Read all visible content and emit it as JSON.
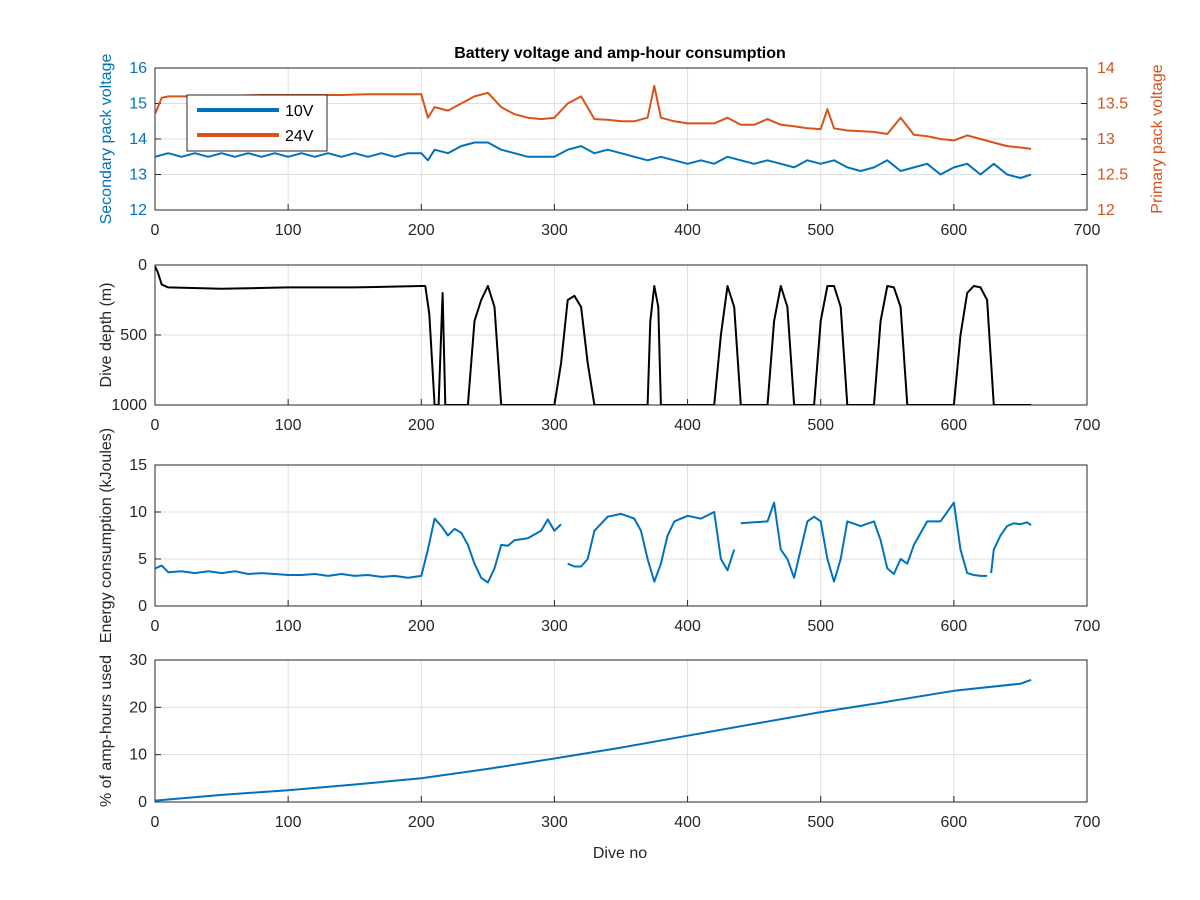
{
  "chart_data": [
    {
      "type": "line",
      "title": "Battery voltage and amp-hour consumption",
      "xlabel": "",
      "ylabel_left": "Secondary pack voltage",
      "ylabel_right": "Primary pack voltage",
      "xlim": [
        0,
        700
      ],
      "ylim_left": [
        12,
        16
      ],
      "ylim_right": [
        12,
        14
      ],
      "xticks": [
        "0",
        "100",
        "200",
        "300",
        "400",
        "500",
        "600",
        "700"
      ],
      "yticks_left": [
        "12",
        "13",
        "14",
        "15",
        "16"
      ],
      "yticks_right": [
        "12",
        "12.5",
        "13",
        "13.5",
        "14"
      ],
      "legend": {
        "position": "top-left",
        "entries": [
          "10V",
          "24V"
        ]
      },
      "grid": true,
      "series": [
        {
          "name": "10V",
          "axis": "left",
          "color": "#0072BD",
          "x": [
            0,
            10,
            20,
            30,
            40,
            50,
            60,
            70,
            80,
            90,
            100,
            110,
            120,
            130,
            140,
            150,
            160,
            170,
            180,
            190,
            200,
            205,
            210,
            220,
            230,
            240,
            250,
            260,
            270,
            280,
            290,
            300,
            310,
            320,
            330,
            340,
            350,
            360,
            370,
            380,
            390,
            400,
            410,
            420,
            430,
            440,
            450,
            460,
            470,
            480,
            490,
            500,
            510,
            520,
            530,
            540,
            550,
            560,
            570,
            580,
            590,
            600,
            610,
            620,
            630,
            640,
            650,
            658
          ],
          "y": [
            13.5,
            13.6,
            13.5,
            13.6,
            13.5,
            13.6,
            13.5,
            13.6,
            13.5,
            13.6,
            13.5,
            13.6,
            13.5,
            13.6,
            13.5,
            13.6,
            13.5,
            13.6,
            13.5,
            13.6,
            13.6,
            13.4,
            13.7,
            13.6,
            13.8,
            13.9,
            13.9,
            13.7,
            13.6,
            13.5,
            13.5,
            13.5,
            13.7,
            13.8,
            13.6,
            13.7,
            13.6,
            13.5,
            13.4,
            13.5,
            13.4,
            13.3,
            13.4,
            13.3,
            13.5,
            13.4,
            13.3,
            13.4,
            13.3,
            13.2,
            13.4,
            13.3,
            13.4,
            13.2,
            13.1,
            13.2,
            13.4,
            13.1,
            13.2,
            13.3,
            13.0,
            13.2,
            13.3,
            13.0,
            13.3,
            13.0,
            12.9,
            13.0
          ]
        },
        {
          "name": "24V",
          "axis": "right",
          "color": "#D95319",
          "x": [
            0,
            5,
            10,
            20,
            40,
            60,
            80,
            100,
            120,
            140,
            160,
            180,
            200,
            205,
            210,
            220,
            230,
            240,
            250,
            260,
            270,
            280,
            290,
            300,
            310,
            320,
            330,
            340,
            350,
            360,
            370,
            375,
            380,
            390,
            400,
            420,
            430,
            440,
            450,
            460,
            470,
            480,
            490,
            500,
            505,
            510,
            520,
            540,
            550,
            560,
            570,
            580,
            590,
            600,
            610,
            620,
            630,
            640,
            650,
            658
          ],
          "y": [
            13.35,
            13.58,
            13.6,
            13.6,
            13.6,
            13.61,
            13.62,
            13.62,
            13.62,
            13.62,
            13.63,
            13.63,
            13.63,
            13.3,
            13.45,
            13.4,
            13.5,
            13.6,
            13.65,
            13.45,
            13.35,
            13.3,
            13.28,
            13.3,
            13.5,
            13.6,
            13.28,
            13.27,
            13.25,
            13.25,
            13.3,
            13.75,
            13.3,
            13.25,
            13.22,
            13.22,
            13.3,
            13.2,
            13.2,
            13.28,
            13.2,
            13.18,
            13.15,
            13.14,
            13.42,
            13.15,
            13.12,
            13.1,
            13.07,
            13.3,
            13.06,
            13.04,
            13.0,
            12.98,
            13.05,
            13.0,
            12.95,
            12.9,
            12.88,
            12.86
          ]
        }
      ]
    },
    {
      "type": "line",
      "title": "",
      "xlabel": "",
      "ylabel": "Dive depth (m)",
      "xlim": [
        0,
        700
      ],
      "ylim": [
        0,
        1000
      ],
      "y_reversed": true,
      "xticks": [
        "0",
        "100",
        "200",
        "300",
        "400",
        "500",
        "600",
        "700"
      ],
      "yticks": [
        "0",
        "500",
        "1000"
      ],
      "grid": true,
      "series": [
        {
          "color": "#000000",
          "x": [
            0,
            2,
            5,
            10,
            50,
            100,
            150,
            200,
            203,
            206,
            210,
            213,
            216,
            218,
            220,
            222,
            235,
            240,
            245,
            250,
            255,
            260,
            265,
            300,
            305,
            310,
            315,
            320,
            325,
            330,
            335,
            370,
            372,
            375,
            378,
            380,
            383,
            385,
            420,
            425,
            430,
            435,
            440,
            445,
            460,
            465,
            470,
            475,
            480,
            485,
            495,
            500,
            505,
            510,
            515,
            520,
            525,
            540,
            545,
            550,
            555,
            560,
            565,
            570,
            600,
            605,
            610,
            615,
            620,
            625,
            630,
            635,
            658
          ],
          "y": [
            10,
            50,
            140,
            160,
            170,
            160,
            160,
            150,
            150,
            350,
            1000,
            1000,
            200,
            1000,
            1000,
            1000,
            1000,
            400,
            250,
            150,
            300,
            1000,
            1000,
            1000,
            700,
            250,
            220,
            300,
            700,
            1000,
            1000,
            1000,
            400,
            150,
            300,
            1000,
            1000,
            1000,
            1000,
            500,
            150,
            300,
            1000,
            1000,
            1000,
            400,
            150,
            300,
            1000,
            1000,
            1000,
            400,
            150,
            150,
            300,
            1000,
            1000,
            1000,
            400,
            150,
            160,
            300,
            1000,
            1000,
            1000,
            500,
            200,
            150,
            160,
            250,
            1000,
            1000,
            1000
          ]
        }
      ]
    },
    {
      "type": "line",
      "title": "",
      "xlabel": "",
      "ylabel": "Energy consumption (kJoules)",
      "xlim": [
        0,
        700
      ],
      "ylim": [
        0,
        15
      ],
      "xticks": [
        "0",
        "100",
        "200",
        "300",
        "400",
        "500",
        "600",
        "700"
      ],
      "yticks": [
        "0",
        "5",
        "10",
        "15"
      ],
      "grid": true,
      "series": [
        {
          "color": "#0072BD",
          "segments": [
            {
              "x": [
                0,
                5,
                10,
                20,
                30,
                40,
                50,
                60,
                70,
                80,
                90,
                100,
                110,
                120,
                130,
                140,
                150,
                160,
                170,
                180,
                190,
                200,
                205,
                210,
                215,
                220,
                225,
                230,
                235,
                240,
                245,
                250,
                255,
                260,
                265,
                270,
                280,
                290,
                295,
                300,
                305
              ],
              "y": [
                4.0,
                4.3,
                3.6,
                3.7,
                3.5,
                3.7,
                3.5,
                3.7,
                3.4,
                3.5,
                3.4,
                3.3,
                3.3,
                3.4,
                3.2,
                3.4,
                3.2,
                3.3,
                3.1,
                3.2,
                3.0,
                3.2,
                6.0,
                9.3,
                8.5,
                7.5,
                8.2,
                7.8,
                6.5,
                4.5,
                3.0,
                2.5,
                4.0,
                6.5,
                6.4,
                7.0,
                7.2,
                8.0,
                9.2,
                8.0,
                8.7
              ]
            },
            {
              "x": [
                310,
                315,
                320,
                325,
                330,
                340,
                350,
                360,
                365,
                370,
                375,
                380,
                385,
                390,
                400,
                410,
                420,
                425,
                430,
                435
              ],
              "y": [
                4.5,
                4.2,
                4.2,
                5.0,
                8.0,
                9.5,
                9.8,
                9.3,
                8.0,
                5.0,
                2.6,
                4.5,
                7.5,
                9.0,
                9.6,
                9.3,
                10.0,
                5.0,
                3.8,
                6.0
              ]
            },
            {
              "x": [
                440,
                450,
                460,
                465,
                470,
                475,
                480,
                485,
                490,
                495,
                500,
                505,
                510,
                515,
                520,
                530,
                540,
                545,
                550,
                555,
                560,
                565,
                570,
                580,
                590,
                600,
                605,
                610,
                615,
                620,
                625
              ],
              "y": [
                8.8,
                8.9,
                9.0,
                11.0,
                6.0,
                5.0,
                3.0,
                6.0,
                9.0,
                9.5,
                9.0,
                5.0,
                2.6,
                5.0,
                9.0,
                8.5,
                9.0,
                7.0,
                4.0,
                3.4,
                5.0,
                4.5,
                6.5,
                9.0,
                9.0,
                11.0,
                6.0,
                3.5,
                3.3,
                3.2,
                3.2
              ]
            },
            {
              "x": [
                628,
                630,
                635,
                640,
                645,
                650,
                655,
                658
              ],
              "y": [
                3.5,
                6.0,
                7.5,
                8.5,
                8.8,
                8.7,
                8.9,
                8.6
              ]
            }
          ]
        }
      ]
    },
    {
      "type": "line",
      "title": "",
      "xlabel": "Dive no",
      "ylabel": "% of amp-hours used",
      "xlim": [
        0,
        700
      ],
      "ylim": [
        0,
        30
      ],
      "xticks": [
        "0",
        "100",
        "200",
        "300",
        "400",
        "500",
        "600",
        "700"
      ],
      "yticks": [
        "0",
        "10",
        "20",
        "30"
      ],
      "grid": true,
      "series": [
        {
          "color": "#0072BD",
          "x": [
            0,
            50,
            100,
            150,
            200,
            250,
            300,
            350,
            400,
            450,
            500,
            550,
            600,
            650,
            658
          ],
          "y": [
            0.3,
            1.5,
            2.5,
            3.7,
            5.0,
            7.0,
            9.2,
            11.5,
            14.0,
            16.5,
            19.0,
            21.2,
            23.5,
            25.0,
            25.8
          ]
        }
      ]
    }
  ]
}
